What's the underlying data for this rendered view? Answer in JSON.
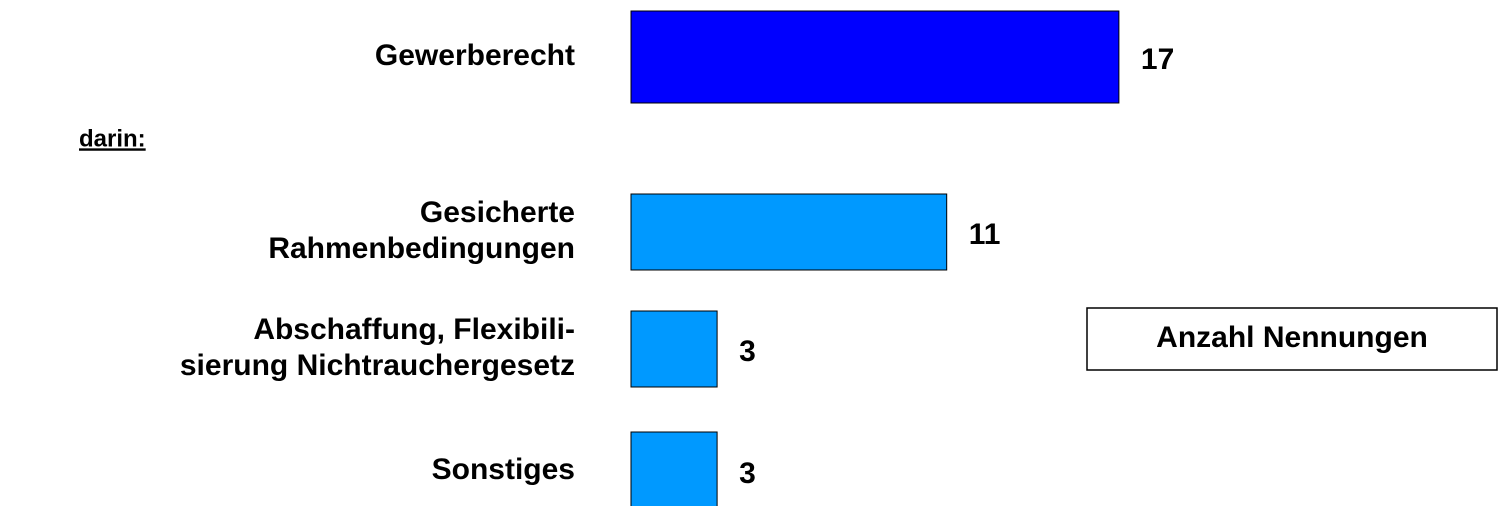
{
  "chart_data": {
    "type": "bar",
    "orientation": "horizontal",
    "categories": [
      [
        "Gewerberecht"
      ],
      [
        "Gesicherte",
        "Rahmenbedingungen"
      ],
      [
        "Abschaffung, Flexibili-",
        "sierung Nichtrauchergesetz"
      ],
      [
        "Sonstiges"
      ]
    ],
    "values": [
      17,
      11,
      3,
      3
    ],
    "colors": [
      "#0000ff",
      "#0099ff",
      "#0099ff",
      "#0099ff"
    ],
    "annotations": [
      "darin:",
      "Anzahl Nennungen"
    ]
  }
}
